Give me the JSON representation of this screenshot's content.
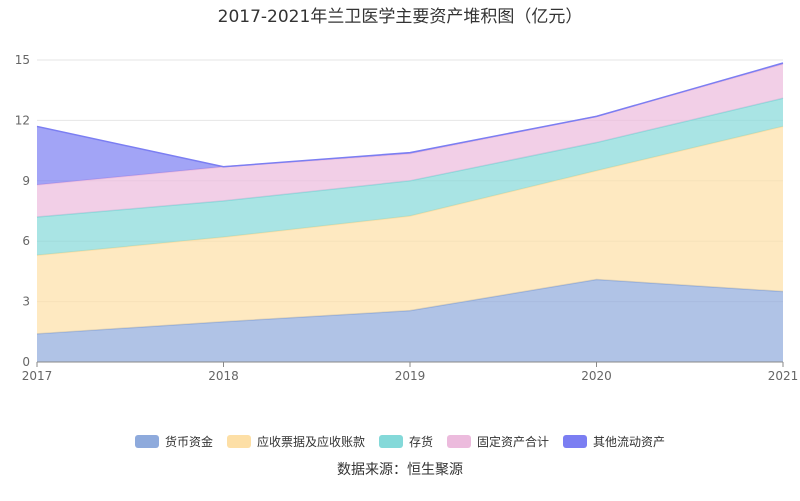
{
  "chart_data": {
    "type": "area",
    "stacked": true,
    "title": "2017-2021年兰卫医学主要资产堆积图（亿元）",
    "categories": [
      "2017",
      "2018",
      "2019",
      "2020",
      "2021"
    ],
    "ylim": [
      0,
      15
    ],
    "yticks": [
      "0",
      "3",
      "6",
      "9",
      "12",
      "15"
    ],
    "grid": true,
    "legend_position": "bottom",
    "series": [
      {
        "name": "货币资金",
        "color": "#8eaadc",
        "values": [
          1.4,
          2.0,
          2.55,
          4.1,
          3.5
        ]
      },
      {
        "name": "应收票据及应收账款",
        "color": "#fddfa6",
        "values": [
          3.9,
          4.2,
          4.7,
          5.4,
          8.2
        ]
      },
      {
        "name": "存货",
        "color": "#84d9d9",
        "values": [
          1.9,
          1.8,
          1.75,
          1.4,
          1.4
        ]
      },
      {
        "name": "固定资产合计",
        "color": "#ecbbdd",
        "values": [
          1.6,
          1.7,
          1.35,
          1.3,
          1.7
        ]
      },
      {
        "name": "其他流动资产",
        "color": "#7b7ef2",
        "values": [
          2.9,
          0.0,
          0.05,
          0.0,
          0.05
        ]
      }
    ]
  },
  "source": "数据来源：恒生聚源"
}
